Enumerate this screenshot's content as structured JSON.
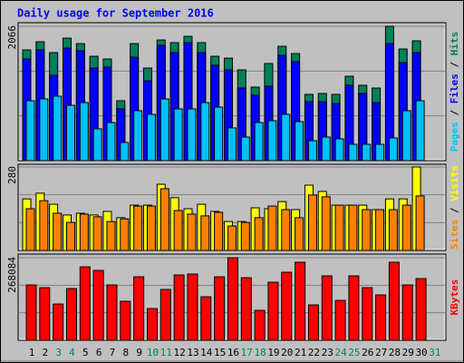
{
  "chart_data": {
    "type": "bar",
    "title": "Daily usage for September 2016",
    "categories": [
      "1",
      "2",
      "3",
      "4",
      "5",
      "6",
      "7",
      "8",
      "9",
      "10",
      "11",
      "12",
      "13",
      "14",
      "15",
      "16",
      "17",
      "18",
      "19",
      "20",
      "21",
      "22",
      "23",
      "24",
      "25",
      "26",
      "27",
      "28",
      "29",
      "30",
      "31"
    ],
    "category_colors": [
      "#000000",
      "#000000",
      "#00805c",
      "#00805c",
      "#000000",
      "#000000",
      "#000000",
      "#000000",
      "#000000",
      "#00805c",
      "#00805c",
      "#000000",
      "#000000",
      "#000000",
      "#000000",
      "#000000",
      "#00805c",
      "#00805c",
      "#000000",
      "#000000",
      "#000000",
      "#000000",
      "#000000",
      "#00805c",
      "#00805c",
      "#000000",
      "#000000",
      "#000000",
      "#000000",
      "#000000",
      "#00805c"
    ],
    "legend_separator": " / ",
    "panels": [
      {
        "ylim": [
          0,
          2066
        ],
        "yticks": [
          2066
        ],
        "series": [
          {
            "name": "Hits",
            "color": "#00805c",
            "values": [
              1703,
              1829,
              1661,
              1884,
              1800,
              1605,
              1563,
              921,
              1800,
              1424,
              1856,
              1815,
              1912,
              1815,
              1605,
              1577,
              1396,
              1131,
              1494,
              1759,
              1647,
              1019,
              1033,
              1019,
              1298,
              1159,
              1117,
              2066,
              1717,
              1843,
              null
            ]
          },
          {
            "name": "Files",
            "color": "#0000ff",
            "values": [
              1563,
              1703,
              1312,
              1731,
              1689,
              1424,
              1438,
              796,
              1591,
              1228,
              1773,
              1661,
              1815,
              1661,
              1466,
              1396,
              1117,
              1005,
              1145,
              1619,
              1522,
              907,
              907,
              879,
              1159,
              1033,
              893,
              1800,
              1508,
              1661,
              null
            ]
          },
          {
            "name": "Pages",
            "color": "#00c0ff",
            "values": [
              921,
              949,
              991,
              851,
              893,
              489,
              586,
              279,
              768,
              712,
              949,
              796,
              796,
              893,
              823,
              503,
              363,
              586,
              614,
              712,
              600,
              307,
              363,
              335,
              251,
              251,
              251,
              349,
              768,
              921,
              null
            ]
          }
        ]
      },
      {
        "ylim": [
          0,
          280
        ],
        "yticks": [
          280
        ],
        "series": [
          {
            "name": "Visits",
            "color": "#ffff00",
            "values": [
              173,
              192,
              155,
              119,
              125,
              119,
              131,
              110,
              152,
              152,
              222,
              177,
              140,
              155,
              131,
              97,
              97,
              143,
              140,
              164,
              137,
              219,
              198,
              152,
              152,
              152,
              137,
              173,
              173,
              280,
              null
            ]
          },
          {
            "name": "Sites",
            "color": "#ff8000",
            "values": [
              140,
              167,
              125,
              94,
              122,
              113,
              97,
              106,
              149,
              149,
              207,
              134,
              122,
              116,
              128,
              82,
              94,
              110,
              149,
              137,
              110,
              186,
              180,
              152,
              152,
              137,
              137,
              137,
              152,
              183,
              null
            ]
          }
        ]
      },
      {
        "ylim": [
          0,
          268084
        ],
        "yticks": [
          268084
        ],
        "series": [
          {
            "name": "KBytes",
            "color": "#ff0000",
            "values": [
              179700,
              170900,
              117800,
              167900,
              238600,
              226900,
              179700,
              126700,
              206200,
              103100,
              165000,
              212100,
              215100,
              141400,
              206200,
              268084,
              203300,
              97200,
              188500,
              221000,
              253400,
              114900,
              209200,
              129600,
              209200,
              170900,
              147300,
              253400,
              179700,
              200300,
              null
            ]
          }
        ]
      }
    ]
  }
}
